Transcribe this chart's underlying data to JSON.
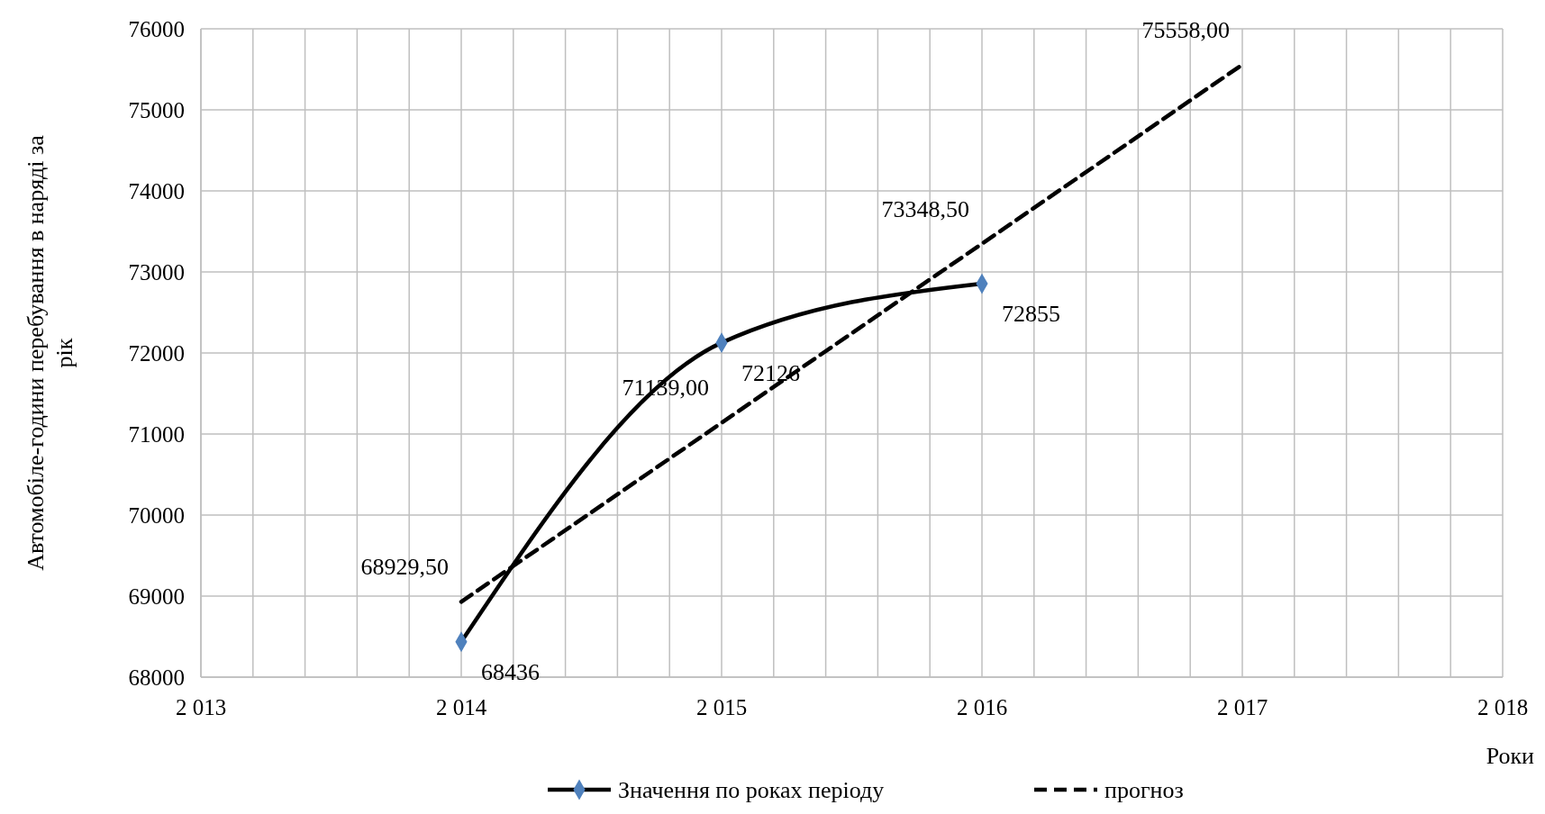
{
  "chart_data": {
    "type": "line",
    "xlabel": "Роки",
    "ylabel": "Автомобіле-години перебування в наряді за рік",
    "xlim": [
      2013,
      2018
    ],
    "xticks": [
      {
        "value": 2013,
        "label": "2 013"
      },
      {
        "value": 2013.2,
        "label": null
      },
      {
        "value": 2013.4,
        "label": null
      },
      {
        "value": 2013.6,
        "label": null
      },
      {
        "value": 2013.8,
        "label": null
      },
      {
        "value": 2014,
        "label": "2 014"
      },
      {
        "value": 2014.2,
        "label": null
      },
      {
        "value": 2014.4,
        "label": null
      },
      {
        "value": 2014.6,
        "label": null
      },
      {
        "value": 2014.8,
        "label": null
      },
      {
        "value": 2015,
        "label": "2 015"
      },
      {
        "value": 2015.2,
        "label": null
      },
      {
        "value": 2015.4,
        "label": null
      },
      {
        "value": 2015.6,
        "label": null
      },
      {
        "value": 2015.8,
        "label": null
      },
      {
        "value": 2016,
        "label": "2 016"
      },
      {
        "value": 2016.2,
        "label": null
      },
      {
        "value": 2016.4,
        "label": null
      },
      {
        "value": 2016.6,
        "label": null
      },
      {
        "value": 2016.8,
        "label": null
      },
      {
        "value": 2017,
        "label": "2 017"
      },
      {
        "value": 2017.2,
        "label": null
      },
      {
        "value": 2017.4,
        "label": null
      },
      {
        "value": 2017.6,
        "label": null
      },
      {
        "value": 2017.8,
        "label": null
      },
      {
        "value": 2018,
        "label": "2 018"
      }
    ],
    "ylim": [
      68000,
      76000
    ],
    "yticks": [
      68000,
      69000,
      70000,
      71000,
      72000,
      73000,
      74000,
      75000,
      76000
    ],
    "grid": true,
    "legend": "bottom",
    "series": [
      {
        "name": "Значення по роках періоду",
        "color": "#000000",
        "marker": "diamond",
        "line_style": "solid",
        "x": [
          2014,
          2015,
          2016
        ],
        "values": [
          68436,
          72126,
          72855
        ],
        "value_labels": [
          "68436",
          "72126",
          "72855"
        ]
      },
      {
        "name": "прогноз",
        "color": "#000000",
        "marker": "none",
        "line_style": "dashed",
        "x": [
          2014,
          2015,
          2016,
          2017
        ],
        "values": [
          68929.5,
          71139,
          73348.5,
          75558
        ],
        "value_labels": [
          "68929,50",
          "71139,00",
          "73348,50",
          "75558,00"
        ]
      }
    ]
  }
}
